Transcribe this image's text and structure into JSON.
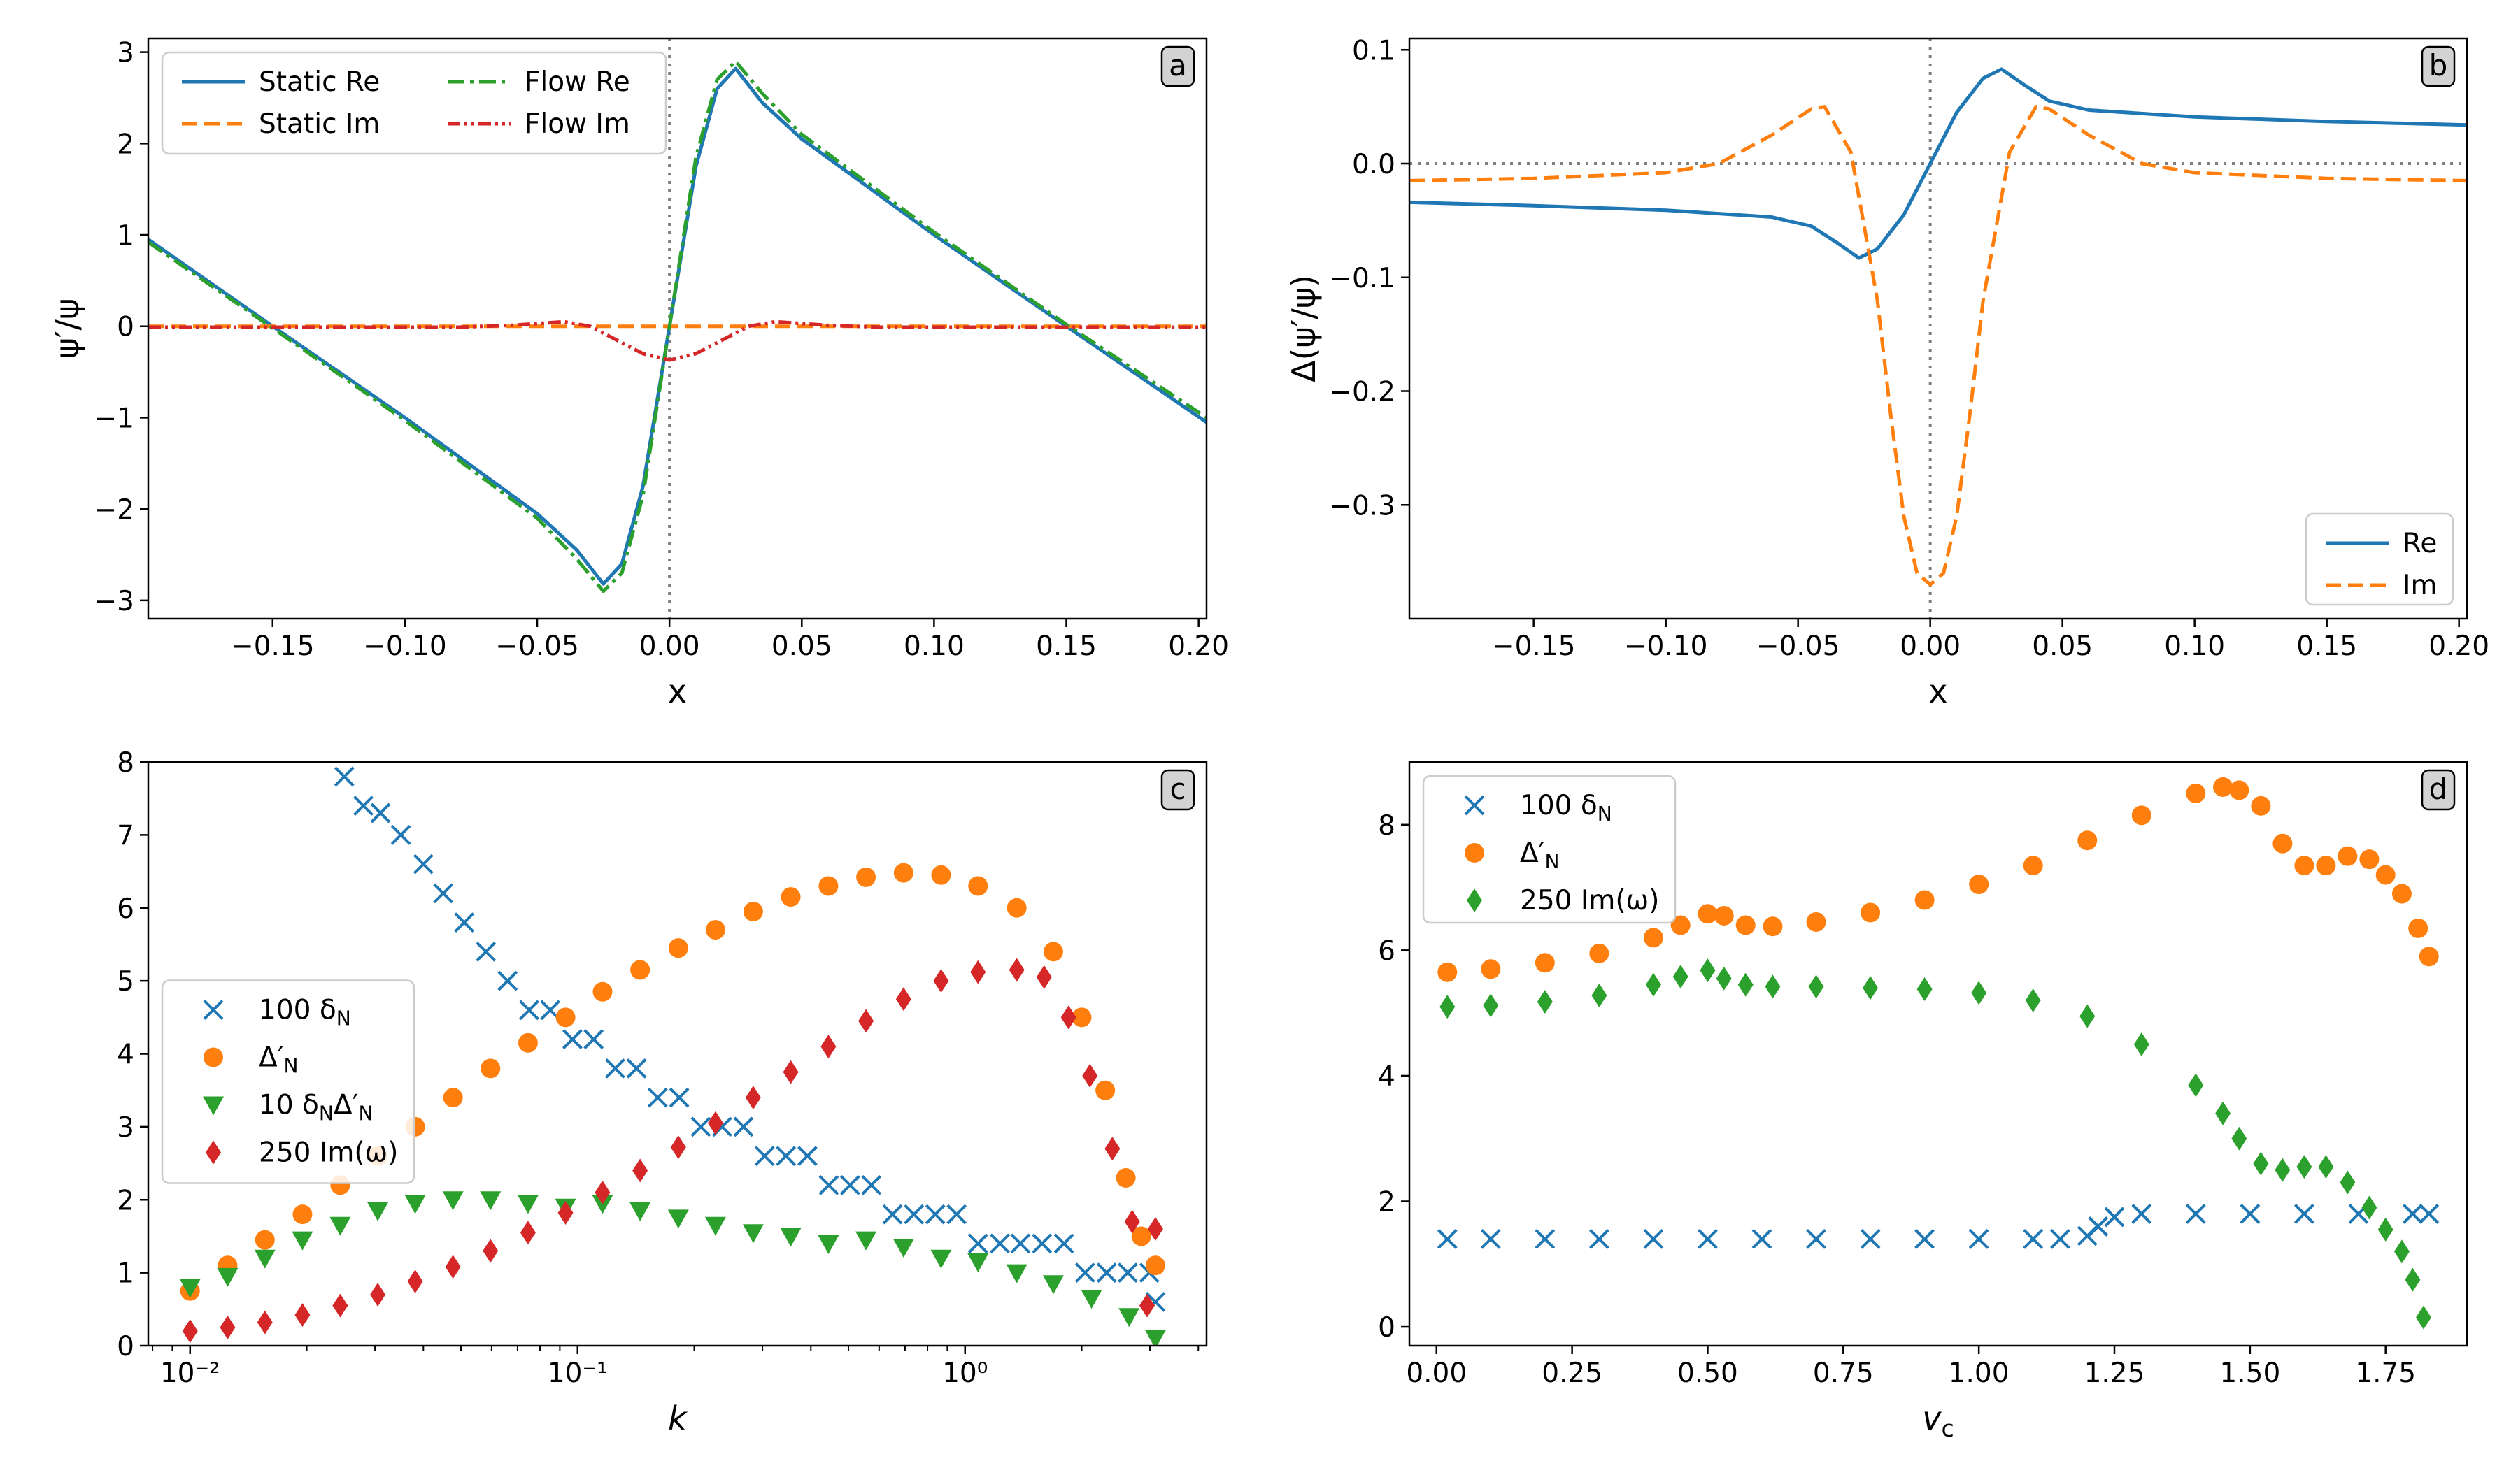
{
  "colors": {
    "blue": "#1f77b4",
    "orange": "#ff7f0e",
    "green": "#2ca02c",
    "red": "#d62728",
    "ref_line": "#808080"
  },
  "chart_data": [
    {
      "id": "a",
      "type": "line",
      "panel_label": "a",
      "xlabel": "x",
      "ylabel": "ψ′/ψ",
      "xlim": [
        -0.197,
        0.203
      ],
      "ylim": [
        -3.2,
        3.15
      ],
      "xscale": "linear",
      "xticks": [
        -0.15,
        -0.1,
        -0.05,
        0.0,
        0.05,
        0.1,
        0.15,
        0.2
      ],
      "xtick_labels": [
        "−0.15",
        "−0.10",
        "−0.05",
        "0.00",
        "0.05",
        "0.10",
        "0.15",
        "0.20"
      ],
      "yticks": [
        -3,
        -2,
        -1,
        0,
        1,
        2,
        3
      ],
      "ytick_labels": [
        "−3",
        "−2",
        "−1",
        "0",
        "1",
        "2",
        "3"
      ],
      "vline_x": 0,
      "legend_location": "top-left",
      "legend_columns": 2,
      "series": [
        {
          "name": "Static Re",
          "color_key": "blue",
          "dash": "solid",
          "x": [
            -0.197,
            -0.15,
            -0.1,
            -0.05,
            -0.035,
            -0.025,
            -0.018,
            -0.01,
            0.0,
            0.01,
            0.018,
            0.025,
            0.035,
            0.05,
            0.1,
            0.15,
            0.203
          ],
          "y": [
            0.95,
            0.0,
            -1.0,
            -2.05,
            -2.45,
            -2.82,
            -2.6,
            -1.75,
            0.0,
            1.75,
            2.6,
            2.82,
            2.45,
            2.05,
            1.0,
            0.0,
            -1.05
          ]
        },
        {
          "name": "Static Im",
          "color_key": "orange",
          "dash": "dashed",
          "x": [
            -0.197,
            0.203
          ],
          "y": [
            0.0,
            0.0
          ]
        },
        {
          "name": "Flow Re",
          "color_key": "green",
          "dash": "dashdot",
          "x": [
            -0.197,
            -0.15,
            -0.1,
            -0.05,
            -0.035,
            -0.025,
            -0.018,
            -0.01,
            0.0,
            0.01,
            0.018,
            0.025,
            0.035,
            0.05,
            0.1,
            0.15,
            0.203
          ],
          "y": [
            0.92,
            -0.02,
            -1.03,
            -2.1,
            -2.55,
            -2.9,
            -2.7,
            -1.85,
            0.0,
            1.85,
            2.7,
            2.9,
            2.55,
            2.1,
            1.03,
            0.02,
            -1.0
          ]
        },
        {
          "name": "Flow Im",
          "color_key": "red",
          "dash": "dashdotdot",
          "x": [
            -0.197,
            -0.08,
            -0.06,
            -0.04,
            -0.03,
            -0.02,
            -0.01,
            0.0,
            0.01,
            0.02,
            0.03,
            0.04,
            0.06,
            0.08,
            0.203
          ],
          "y": [
            -0.01,
            -0.01,
            0.01,
            0.05,
            0.0,
            -0.15,
            -0.3,
            -0.37,
            -0.3,
            -0.15,
            0.0,
            0.05,
            0.01,
            -0.01,
            -0.01
          ]
        }
      ]
    },
    {
      "id": "b",
      "type": "line",
      "panel_label": "b",
      "xlabel": "x",
      "ylabel": "Δ(ψ′/ψ)",
      "xlim": [
        -0.197,
        0.203
      ],
      "ylim": [
        -0.4,
        0.11
      ],
      "xscale": "linear",
      "xticks": [
        -0.15,
        -0.1,
        -0.05,
        0.0,
        0.05,
        0.1,
        0.15,
        0.2
      ],
      "xtick_labels": [
        "−0.15",
        "−0.10",
        "−0.05",
        "0.00",
        "0.05",
        "0.10",
        "0.15",
        "0.20"
      ],
      "yticks": [
        -0.3,
        -0.2,
        -0.1,
        0.0,
        0.1
      ],
      "ytick_labels": [
        "−0.3",
        "−0.2",
        "−0.1",
        "0.0",
        "0.1"
      ],
      "vline_x": 0,
      "hline_y": 0,
      "legend_location": "bottom-right",
      "legend_columns": 1,
      "series": [
        {
          "name": "Re",
          "color_key": "blue",
          "dash": "solid",
          "x": [
            -0.197,
            -0.15,
            -0.1,
            -0.06,
            -0.045,
            -0.035,
            -0.027,
            -0.02,
            -0.01,
            0.0,
            0.01,
            0.02,
            0.027,
            0.035,
            0.045,
            0.06,
            0.1,
            0.15,
            0.203
          ],
          "y": [
            -0.034,
            -0.037,
            -0.041,
            -0.047,
            -0.055,
            -0.07,
            -0.083,
            -0.075,
            -0.045,
            0.0,
            0.045,
            0.075,
            0.083,
            0.07,
            0.055,
            0.047,
            0.041,
            0.037,
            0.034
          ]
        },
        {
          "name": "Im",
          "color_key": "orange",
          "dash": "dashed",
          "x": [
            -0.197,
            -0.15,
            -0.1,
            -0.08,
            -0.06,
            -0.045,
            -0.04,
            -0.03,
            -0.02,
            -0.015,
            -0.01,
            -0.005,
            0.0,
            0.005,
            0.01,
            0.015,
            0.02,
            0.03,
            0.04,
            0.045,
            0.06,
            0.08,
            0.1,
            0.15,
            0.203
          ],
          "y": [
            -0.015,
            -0.013,
            -0.008,
            0.0,
            0.025,
            0.048,
            0.05,
            0.01,
            -0.12,
            -0.22,
            -0.31,
            -0.36,
            -0.37,
            -0.36,
            -0.31,
            -0.22,
            -0.12,
            0.01,
            0.05,
            0.048,
            0.025,
            0.0,
            -0.008,
            -0.013,
            -0.015
          ]
        }
      ]
    },
    {
      "id": "c",
      "type": "scatter",
      "panel_label": "c",
      "xlabel": "k",
      "ylabel": "",
      "xscale": "log",
      "xlim": [
        0.0078,
        4.2
      ],
      "ylim": [
        0,
        8
      ],
      "xticks": [
        0.01,
        0.1,
        1
      ],
      "xtick_labels": [
        "10⁻²",
        "10⁻¹",
        "10⁰"
      ],
      "yticks": [
        0,
        1,
        2,
        3,
        4,
        5,
        6,
        7,
        8
      ],
      "ytick_labels": [
        "0",
        "1",
        "2",
        "3",
        "4",
        "5",
        "6",
        "7",
        "8"
      ],
      "legend_location": "center-left",
      "legend_columns": 1,
      "series": [
        {
          "name": "100 δN",
          "label_main": "100 δ",
          "label_sub": "N",
          "color_key": "blue",
          "marker": "x",
          "x": [
            0.025,
            0.028,
            0.031,
            0.035,
            0.04,
            0.045,
            0.051,
            0.058,
            0.066,
            0.075,
            0.085,
            0.097,
            0.11,
            0.125,
            0.142,
            0.161,
            0.183,
            0.208,
            0.236,
            0.268,
            0.304,
            0.345,
            0.392,
            0.445,
            0.505,
            0.573,
            0.65,
            0.738,
            0.838,
            0.951,
            1.08,
            1.23,
            1.39,
            1.58,
            1.8,
            2.04,
            2.32,
            2.63,
            2.99,
            3.1
          ],
          "y": [
            7.8,
            7.4,
            7.3,
            7.0,
            6.6,
            6.2,
            5.8,
            5.4,
            5.0,
            4.6,
            4.6,
            4.2,
            4.2,
            3.8,
            3.8,
            3.4,
            3.4,
            3.0,
            3.0,
            3.0,
            2.6,
            2.6,
            2.6,
            2.2,
            2.2,
            2.2,
            1.8,
            1.8,
            1.8,
            1.8,
            1.4,
            1.4,
            1.4,
            1.4,
            1.4,
            1.0,
            1.0,
            1.0,
            1.0,
            0.6
          ]
        },
        {
          "name": "Δ′N",
          "label_main": "Δ′",
          "label_sub": "N",
          "color_key": "orange",
          "marker": "o",
          "x": [
            0.01,
            0.0125,
            0.0156,
            0.0195,
            0.0244,
            0.0305,
            0.0381,
            0.0477,
            0.0596,
            0.0745,
            0.0931,
            0.116,
            0.145,
            0.182,
            0.227,
            0.284,
            0.355,
            0.444,
            0.555,
            0.694,
            0.867,
            1.08,
            1.36,
            1.69,
            2.0,
            2.3,
            2.6,
            2.85,
            3.1
          ],
          "y": [
            0.75,
            1.1,
            1.45,
            1.8,
            2.2,
            2.6,
            3.0,
            3.4,
            3.8,
            4.15,
            4.5,
            4.85,
            5.15,
            5.45,
            5.7,
            5.95,
            6.15,
            6.3,
            6.42,
            6.48,
            6.45,
            6.3,
            6.0,
            5.4,
            4.5,
            3.5,
            2.3,
            1.5,
            1.1
          ]
        },
        {
          "name": "10 δNΔ′N",
          "label_main": "10 δ",
          "label_sub": "N",
          "label_main2": "Δ′",
          "label_sub2": "N",
          "color_key": "green",
          "marker": "v",
          "x": [
            0.01,
            0.0125,
            0.0156,
            0.0195,
            0.0244,
            0.0305,
            0.0381,
            0.0477,
            0.0596,
            0.0745,
            0.0931,
            0.116,
            0.145,
            0.182,
            0.227,
            0.284,
            0.355,
            0.444,
            0.555,
            0.694,
            0.867,
            1.08,
            1.36,
            1.69,
            2.12,
            2.65,
            3.1
          ],
          "y": [
            0.8,
            0.95,
            1.2,
            1.45,
            1.65,
            1.85,
            1.95,
            2.0,
            2.0,
            1.95,
            1.9,
            1.95,
            1.85,
            1.75,
            1.65,
            1.55,
            1.5,
            1.4,
            1.45,
            1.35,
            1.2,
            1.15,
            1.0,
            0.85,
            0.65,
            0.4,
            0.1
          ]
        },
        {
          "name": "250 Im(ω)",
          "label_main": "250 Im(ω)",
          "color_key": "red",
          "marker": "D",
          "x": [
            0.01,
            0.0125,
            0.0156,
            0.0195,
            0.0244,
            0.0305,
            0.0381,
            0.0477,
            0.0596,
            0.0745,
            0.0931,
            0.116,
            0.145,
            0.182,
            0.227,
            0.284,
            0.355,
            0.444,
            0.555,
            0.694,
            0.867,
            1.08,
            1.36,
            1.6,
            1.85,
            2.1,
            2.4,
            2.7,
            2.95,
            3.1
          ],
          "y": [
            0.2,
            0.25,
            0.32,
            0.42,
            0.55,
            0.7,
            0.88,
            1.08,
            1.3,
            1.55,
            1.82,
            2.1,
            2.4,
            2.72,
            3.05,
            3.4,
            3.75,
            4.1,
            4.45,
            4.75,
            5.0,
            5.12,
            5.15,
            5.05,
            4.5,
            3.7,
            2.7,
            1.7,
            0.55,
            1.6
          ]
        }
      ]
    },
    {
      "id": "d",
      "type": "scatter",
      "panel_label": "d",
      "xlabel": "vc",
      "xlabel_main": "v",
      "xlabel_sub": "c",
      "ylabel": "",
      "xscale": "linear",
      "xlim": [
        -0.05,
        1.9
      ],
      "ylim": [
        -0.3,
        9.0
      ],
      "xticks": [
        0.0,
        0.25,
        0.5,
        0.75,
        1.0,
        1.25,
        1.5,
        1.75
      ],
      "xtick_labels": [
        "0.00",
        "0.25",
        "0.50",
        "0.75",
        "1.00",
        "1.25",
        "1.50",
        "1.75"
      ],
      "yticks": [
        0,
        2,
        4,
        6,
        8
      ],
      "ytick_labels": [
        "0",
        "2",
        "4",
        "6",
        "8"
      ],
      "legend_location": "top-left",
      "legend_columns": 1,
      "series": [
        {
          "name": "100 δN",
          "label_main": "100 δ",
          "label_sub": "N",
          "color_key": "blue",
          "marker": "x",
          "x": [
            0.02,
            0.1,
            0.2,
            0.3,
            0.4,
            0.5,
            0.6,
            0.7,
            0.8,
            0.9,
            1.0,
            1.1,
            1.15,
            1.2,
            1.22,
            1.25,
            1.3,
            1.4,
            1.5,
            1.6,
            1.7,
            1.8,
            1.83
          ],
          "y": [
            1.4,
            1.4,
            1.4,
            1.4,
            1.4,
            1.4,
            1.4,
            1.4,
            1.4,
            1.4,
            1.4,
            1.4,
            1.4,
            1.45,
            1.6,
            1.75,
            1.8,
            1.8,
            1.8,
            1.8,
            1.8,
            1.8,
            1.8
          ]
        },
        {
          "name": "Δ′N",
          "label_main": "Δ′",
          "label_sub": "N",
          "color_key": "orange",
          "marker": "o",
          "x": [
            0.02,
            0.1,
            0.2,
            0.3,
            0.4,
            0.45,
            0.5,
            0.53,
            0.57,
            0.62,
            0.7,
            0.8,
            0.9,
            1.0,
            1.1,
            1.2,
            1.3,
            1.4,
            1.45,
            1.48,
            1.52,
            1.56,
            1.6,
            1.64,
            1.68,
            1.72,
            1.75,
            1.78,
            1.81,
            1.83
          ],
          "y": [
            5.65,
            5.7,
            5.8,
            5.95,
            6.2,
            6.4,
            6.58,
            6.55,
            6.4,
            6.38,
            6.45,
            6.6,
            6.8,
            7.05,
            7.35,
            7.75,
            8.15,
            8.5,
            8.6,
            8.55,
            8.3,
            7.7,
            7.35,
            7.35,
            7.5,
            7.45,
            7.2,
            6.9,
            6.35,
            5.9
          ]
        },
        {
          "name": "250 Im(ω)",
          "label_main": "250 Im(ω)",
          "color_key": "green",
          "marker": "D",
          "x": [
            0.02,
            0.1,
            0.2,
            0.3,
            0.4,
            0.45,
            0.5,
            0.53,
            0.57,
            0.62,
            0.7,
            0.8,
            0.9,
            1.0,
            1.1,
            1.2,
            1.3,
            1.4,
            1.45,
            1.48,
            1.52,
            1.56,
            1.6,
            1.64,
            1.68,
            1.72,
            1.75,
            1.78,
            1.8,
            1.82
          ],
          "y": [
            5.1,
            5.12,
            5.18,
            5.28,
            5.45,
            5.58,
            5.68,
            5.55,
            5.45,
            5.42,
            5.42,
            5.4,
            5.38,
            5.32,
            5.2,
            4.95,
            4.5,
            3.85,
            3.4,
            3.0,
            2.6,
            2.5,
            2.55,
            2.55,
            2.3,
            1.9,
            1.55,
            1.2,
            0.75,
            0.15
          ]
        }
      ]
    }
  ]
}
